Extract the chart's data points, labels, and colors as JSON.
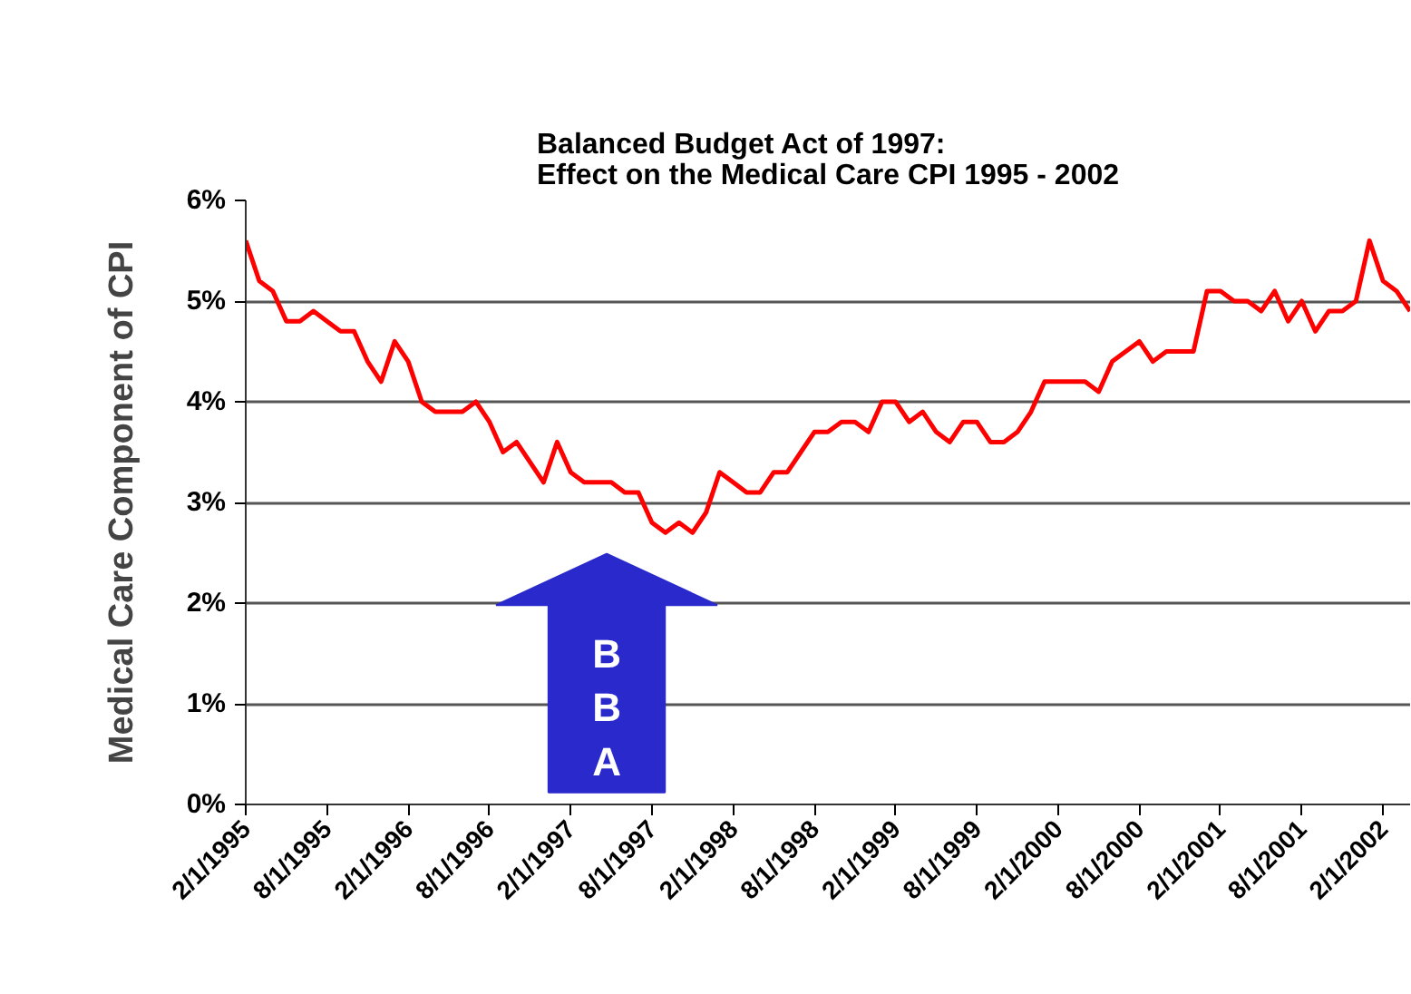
{
  "chart_data": {
    "type": "line",
    "title": "Balanced Budget Act of 1997:\nEffect on the Medical Care CPI 1995 - 2002",
    "ylabel": "Medical Care Component of CPI",
    "categories": [
      "2/1/1995",
      null,
      null,
      null,
      null,
      null,
      "8/1/1995",
      null,
      null,
      null,
      null,
      null,
      "2/1/1996",
      null,
      null,
      null,
      null,
      null,
      "8/1/1996",
      null,
      null,
      null,
      null,
      null,
      "2/1/1997",
      null,
      null,
      null,
      null,
      null,
      "8/1/1997",
      null,
      null,
      null,
      null,
      null,
      "2/1/1998",
      null,
      null,
      null,
      null,
      null,
      "8/1/1998",
      null,
      null,
      null,
      null,
      null,
      "2/1/1999",
      null,
      null,
      null,
      null,
      null,
      "8/1/1999",
      null,
      null,
      null,
      null,
      null,
      "2/1/2000",
      null,
      null,
      null,
      null,
      null,
      "8/1/2000",
      null,
      null,
      null,
      null,
      null,
      "2/1/2001",
      null,
      null,
      null,
      null,
      null,
      "8/1/2001",
      null,
      null,
      null,
      null,
      null,
      "2/1/2002",
      null,
      null
    ],
    "series": [
      {
        "color": "#ff0000",
        "values": [
          5.6,
          5.2,
          5.1,
          4.8,
          4.8,
          4.9,
          4.8,
          4.7,
          4.7,
          4.4,
          4.2,
          4.6,
          4.4,
          4.0,
          3.9,
          3.9,
          3.9,
          4.0,
          3.8,
          3.5,
          3.6,
          3.4,
          3.2,
          3.6,
          3.3,
          3.2,
          3.2,
          3.2,
          3.1,
          3.1,
          2.8,
          2.7,
          2.8,
          2.7,
          2.9,
          3.3,
          3.2,
          3.1,
          3.1,
          3.3,
          3.3,
          3.5,
          3.7,
          3.7,
          3.8,
          3.8,
          3.7,
          4.0,
          4.0,
          3.8,
          3.9,
          3.7,
          3.6,
          3.8,
          3.8,
          3.6,
          3.6,
          3.7,
          3.9,
          4.2,
          4.2,
          4.2,
          4.2,
          4.1,
          4.4,
          4.5,
          4.6,
          4.4,
          4.5,
          4.5,
          4.5,
          5.1,
          5.1,
          5.0,
          5.0,
          4.9,
          5.1,
          4.8,
          5.0,
          4.7,
          4.9,
          4.9,
          5.0,
          5.6,
          5.2,
          5.1,
          4.9
        ]
      }
    ],
    "ylim": [
      0,
      6
    ],
    "yticks": [
      {
        "value": 0,
        "label": "0%"
      },
      {
        "value": 1,
        "label": "1%"
      },
      {
        "value": 2,
        "label": "2%"
      },
      {
        "value": 3,
        "label": "3%"
      },
      {
        "value": 4,
        "label": "4%"
      },
      {
        "value": 5,
        "label": "5%"
      },
      {
        "value": 6,
        "label": "6%"
      }
    ],
    "grid": "y",
    "marker": "none",
    "line_style": "solid",
    "annotations": [
      "BBA"
    ]
  }
}
